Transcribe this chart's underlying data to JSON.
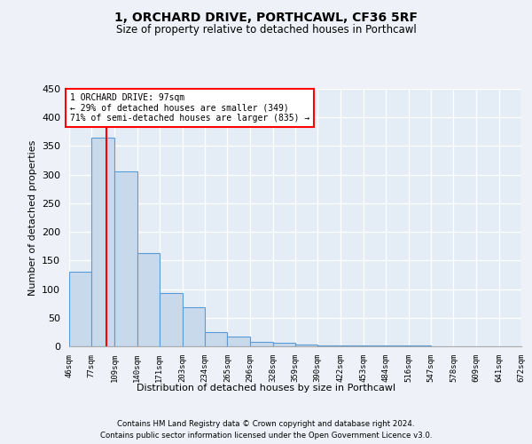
{
  "title": "1, ORCHARD DRIVE, PORTHCAWL, CF36 5RF",
  "subtitle": "Size of property relative to detached houses in Porthcawl",
  "xlabel": "Distribution of detached houses by size in Porthcawl",
  "ylabel": "Number of detached properties",
  "bin_labels": [
    "46sqm",
    "77sqm",
    "109sqm",
    "140sqm",
    "171sqm",
    "203sqm",
    "234sqm",
    "265sqm",
    "296sqm",
    "328sqm",
    "359sqm",
    "390sqm",
    "422sqm",
    "453sqm",
    "484sqm",
    "516sqm",
    "547sqm",
    "578sqm",
    "609sqm",
    "641sqm",
    "672sqm"
  ],
  "bin_edges": [
    46,
    77,
    109,
    140,
    171,
    203,
    234,
    265,
    296,
    328,
    359,
    390,
    422,
    453,
    484,
    516,
    547,
    578,
    609,
    641,
    672
  ],
  "bar_heights": [
    130,
    365,
    305,
    163,
    93,
    68,
    25,
    17,
    8,
    6,
    3,
    2,
    2,
    1,
    1,
    1,
    0,
    0,
    0,
    0
  ],
  "bar_color": "#c8d9ec",
  "bar_edge_color": "#5b9bd5",
  "red_line_x": 97,
  "ylim": [
    0,
    450
  ],
  "yticks": [
    0,
    50,
    100,
    150,
    200,
    250,
    300,
    350,
    400,
    450
  ],
  "annotation_line1": "1 ORCHARD DRIVE: 97sqm",
  "annotation_line2": "← 29% of detached houses are smaller (349)",
  "annotation_line3": "71% of semi-detached houses are larger (835) →",
  "footer_line1": "Contains HM Land Registry data © Crown copyright and database right 2024.",
  "footer_line2": "Contains public sector information licensed under the Open Government Licence v3.0.",
  "background_color": "#eef2f8",
  "plot_bg_color": "#e4edf6"
}
